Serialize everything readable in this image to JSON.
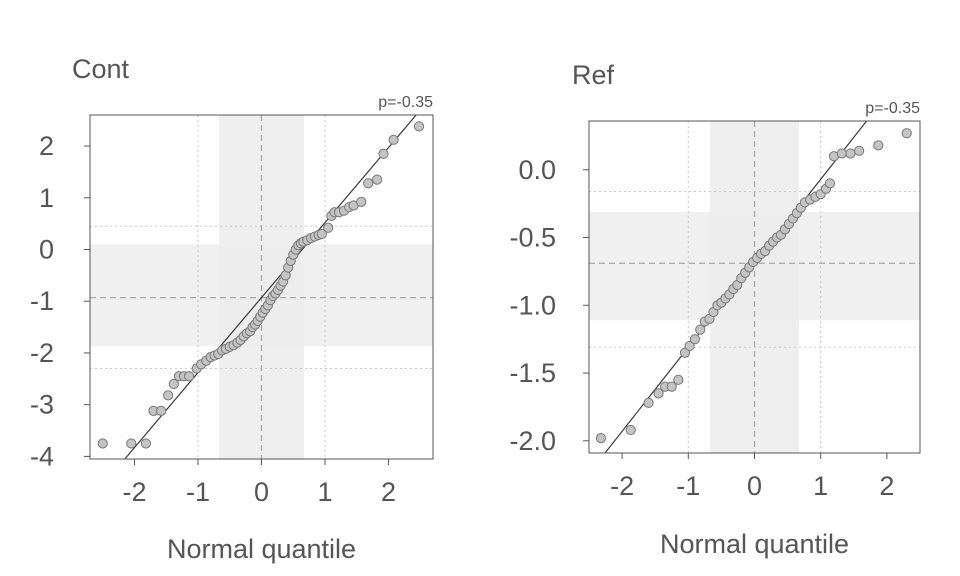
{
  "chart_data": [
    {
      "type": "scatter",
      "title": "Cont",
      "annotation": "p=-0.35",
      "xlabel": "Normal quantile",
      "ylabel": "",
      "xlim": [
        -2.7,
        2.7
      ],
      "ylim": [
        -4.05,
        2.6
      ],
      "xticks": [
        -2,
        -1,
        0,
        1,
        2
      ],
      "xtick_labels": [
        "-2",
        "-1",
        "0",
        "1",
        "2"
      ],
      "yticks": [
        2,
        1,
        0,
        -1,
        -2,
        -3,
        -4
      ],
      "ytick_labels": [
        "2",
        "1",
        "0",
        "-1",
        "-2",
        "-3",
        "-4"
      ],
      "grid": true,
      "x_band": [
        -0.67,
        0.67
      ],
      "y_band": [
        -1.87,
        0.1
      ],
      "x_center": 0,
      "y_center": -0.93,
      "y_whisker_lines": [
        0.45,
        -2.3
      ],
      "x_whisker_lines": [
        -1,
        1
      ],
      "fit_line": {
        "slope": 1.45,
        "intercept": -0.93
      },
      "series": [
        {
          "points": [
            [
              -2.5,
              -3.75
            ],
            [
              -2.05,
              -3.75
            ],
            [
              -1.82,
              -3.75
            ],
            [
              -1.7,
              -3.12
            ],
            [
              -1.58,
              -3.12
            ],
            [
              -1.47,
              -2.82
            ],
            [
              -1.38,
              -2.6
            ],
            [
              -1.3,
              -2.45
            ],
            [
              -1.22,
              -2.45
            ],
            [
              -1.14,
              -2.45
            ],
            [
              -1.02,
              -2.3
            ],
            [
              -0.95,
              -2.22
            ],
            [
              -0.87,
              -2.15
            ],
            [
              -0.8,
              -2.08
            ],
            [
              -0.74,
              -2.05
            ],
            [
              -0.68,
              -2.02
            ],
            [
              -0.62,
              -1.95
            ],
            [
              -0.56,
              -1.92
            ],
            [
              -0.5,
              -1.88
            ],
            [
              -0.44,
              -1.85
            ],
            [
              -0.38,
              -1.8
            ],
            [
              -0.33,
              -1.75
            ],
            [
              -0.28,
              -1.68
            ],
            [
              -0.23,
              -1.62
            ],
            [
              -0.18,
              -1.58
            ],
            [
              -0.14,
              -1.5
            ],
            [
              -0.1,
              -1.45
            ],
            [
              -0.06,
              -1.38
            ],
            [
              -0.02,
              -1.3
            ],
            [
              0.02,
              -1.22
            ],
            [
              0.06,
              -1.15
            ],
            [
              0.1,
              -1.08
            ],
            [
              0.14,
              -0.98
            ],
            [
              0.18,
              -0.9
            ],
            [
              0.22,
              -0.85
            ],
            [
              0.26,
              -0.78
            ],
            [
              0.3,
              -0.7
            ],
            [
              0.34,
              -0.62
            ],
            [
              0.38,
              -0.5
            ],
            [
              0.42,
              -0.35
            ],
            [
              0.46,
              -0.22
            ],
            [
              0.5,
              -0.1
            ],
            [
              0.54,
              0.0
            ],
            [
              0.58,
              0.08
            ],
            [
              0.62,
              0.12
            ],
            [
              0.66,
              0.15
            ],
            [
              0.72,
              0.18
            ],
            [
              0.78,
              0.22
            ],
            [
              0.84,
              0.25
            ],
            [
              0.9,
              0.28
            ],
            [
              0.95,
              0.3
            ],
            [
              1.05,
              0.42
            ],
            [
              1.1,
              0.65
            ],
            [
              1.15,
              0.72
            ],
            [
              1.22,
              0.72
            ],
            [
              1.3,
              0.75
            ],
            [
              1.38,
              0.82
            ],
            [
              1.45,
              0.85
            ],
            [
              1.57,
              0.92
            ],
            [
              1.68,
              1.28
            ],
            [
              1.82,
              1.35
            ],
            [
              1.92,
              1.85
            ],
            [
              2.08,
              2.12
            ],
            [
              2.48,
              2.38
            ]
          ]
        }
      ]
    },
    {
      "type": "scatter",
      "title": "Ref",
      "annotation": "p=-0.35",
      "xlabel": "Normal quantile",
      "ylabel": "",
      "xlim": [
        -2.5,
        2.5
      ],
      "ylim": [
        -2.09,
        0.36
      ],
      "xticks": [
        -2,
        -1,
        0,
        1,
        2
      ],
      "xtick_labels": [
        "-2",
        "-1",
        "0",
        "1",
        "2"
      ],
      "yticks": [
        0.0,
        -0.5,
        -1.0,
        -1.5,
        -2.0
      ],
      "ytick_labels": [
        "0.0",
        "-0.5",
        "-1.0",
        "-1.5",
        "-2.0"
      ],
      "grid": true,
      "x_band": [
        -0.67,
        0.67
      ],
      "y_band": [
        -1.11,
        -0.31
      ],
      "x_center": 0,
      "y_center": -0.69,
      "y_whisker_lines": [
        -0.16,
        -1.31
      ],
      "x_whisker_lines": [
        -1,
        1
      ],
      "fit_line": {
        "slope": 0.62,
        "intercept": -0.69
      },
      "series": [
        {
          "points": [
            [
              -2.32,
              -1.98
            ],
            [
              -1.87,
              -1.92
            ],
            [
              -1.6,
              -1.72
            ],
            [
              -1.45,
              -1.65
            ],
            [
              -1.35,
              -1.6
            ],
            [
              -1.25,
              -1.6
            ],
            [
              -1.15,
              -1.55
            ],
            [
              -1.05,
              -1.35
            ],
            [
              -0.98,
              -1.3
            ],
            [
              -0.9,
              -1.25
            ],
            [
              -0.82,
              -1.18
            ],
            [
              -0.75,
              -1.12
            ],
            [
              -0.68,
              -1.1
            ],
            [
              -0.62,
              -1.05
            ],
            [
              -0.56,
              -1.0
            ],
            [
              -0.5,
              -0.98
            ],
            [
              -0.44,
              -0.95
            ],
            [
              -0.38,
              -0.92
            ],
            [
              -0.32,
              -0.88
            ],
            [
              -0.26,
              -0.85
            ],
            [
              -0.2,
              -0.8
            ],
            [
              -0.14,
              -0.76
            ],
            [
              -0.08,
              -0.72
            ],
            [
              -0.02,
              -0.68
            ],
            [
              0.04,
              -0.65
            ],
            [
              0.1,
              -0.62
            ],
            [
              0.16,
              -0.6
            ],
            [
              0.22,
              -0.56
            ],
            [
              0.28,
              -0.53
            ],
            [
              0.34,
              -0.5
            ],
            [
              0.4,
              -0.48
            ],
            [
              0.46,
              -0.44
            ],
            [
              0.52,
              -0.4
            ],
            [
              0.58,
              -0.36
            ],
            [
              0.64,
              -0.32
            ],
            [
              0.7,
              -0.28
            ],
            [
              0.76,
              -0.24
            ],
            [
              0.84,
              -0.22
            ],
            [
              0.92,
              -0.2
            ],
            [
              1.0,
              -0.18
            ],
            [
              1.08,
              -0.14
            ],
            [
              1.14,
              -0.1
            ],
            [
              1.2,
              0.1
            ],
            [
              1.32,
              0.12
            ],
            [
              1.45,
              0.12
            ],
            [
              1.58,
              0.14
            ],
            [
              1.87,
              0.18
            ],
            [
              2.3,
              0.27
            ]
          ]
        }
      ]
    }
  ]
}
